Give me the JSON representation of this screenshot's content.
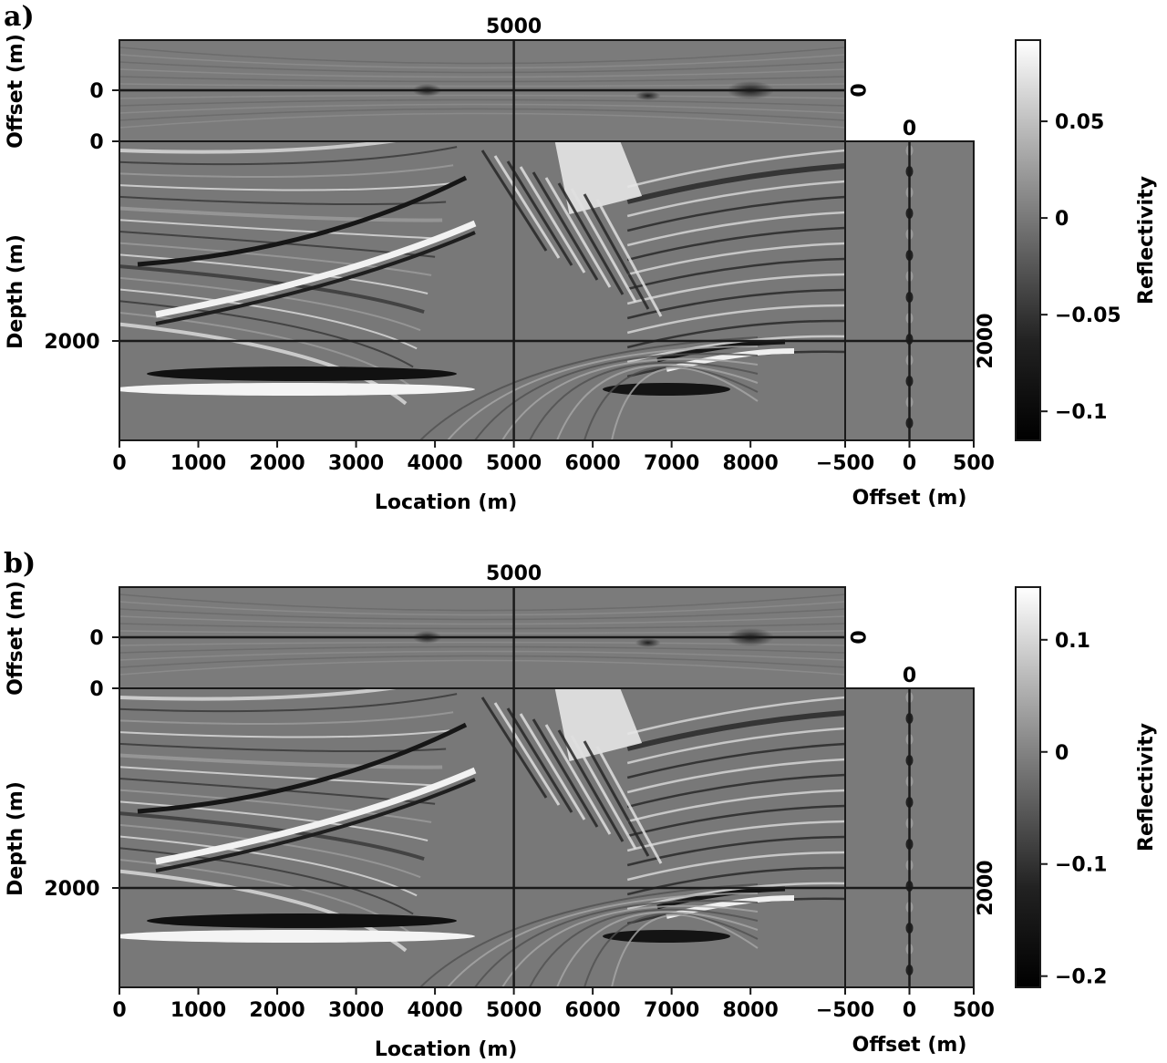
{
  "panels": [
    {
      "tag": "a)",
      "center_location_label": "5000",
      "top_offset_label": "0",
      "right_offset_label": "0",
      "depth_line_label": "2000",
      "right_depth_label": "2000",
      "offset_axis_label": "Offset (m)",
      "depth_axis_label": "Depth (m)",
      "offset_tick_top": "0",
      "offset_tick_bottom": "0",
      "depth_tick": "2000",
      "location_axis_label": "Location (m)",
      "location_ticks": [
        "0",
        "1000",
        "2000",
        "3000",
        "4000",
        "5000",
        "6000",
        "7000",
        "8000"
      ],
      "gather_axis_label": "Offset (m)",
      "gather_ticks": [
        "−500",
        "0",
        "500"
      ],
      "colorbar_label": "Reflectivity",
      "colorbar_range": [
        -0.115,
        0.092
      ],
      "colorbar_ticks": [
        {
          "value": 0.05,
          "label": "0.05"
        },
        {
          "value": 0,
          "label": "0"
        },
        {
          "value": -0.05,
          "label": "−0.05"
        },
        {
          "value": -0.1,
          "label": "−0.1"
        }
      ]
    },
    {
      "tag": "b)",
      "center_location_label": "5000",
      "top_offset_label": "0",
      "right_offset_label": "0",
      "depth_line_label": "2000",
      "right_depth_label": "2000",
      "offset_axis_label": "Offset (m)",
      "depth_axis_label": "Depth (m)",
      "offset_tick_top": "0",
      "offset_tick_bottom": "0",
      "depth_tick": "2000",
      "location_axis_label": "Location (m)",
      "location_ticks": [
        "0",
        "1000",
        "2000",
        "3000",
        "4000",
        "5000",
        "6000",
        "7000",
        "8000"
      ],
      "gather_axis_label": "Offset (m)",
      "gather_ticks": [
        "−500",
        "0",
        "500"
      ],
      "colorbar_label": "Reflectivity",
      "colorbar_range": [
        -0.21,
        0.147
      ],
      "colorbar_ticks": [
        {
          "value": 0.1,
          "label": "0.1"
        },
        {
          "value": 0,
          "label": "0"
        },
        {
          "value": -0.1,
          "label": "−0.1"
        },
        {
          "value": -0.2,
          "label": "−0.2"
        }
      ]
    }
  ],
  "colors": {
    "background_gray": "#777777",
    "frame": "#1a1a1a"
  }
}
